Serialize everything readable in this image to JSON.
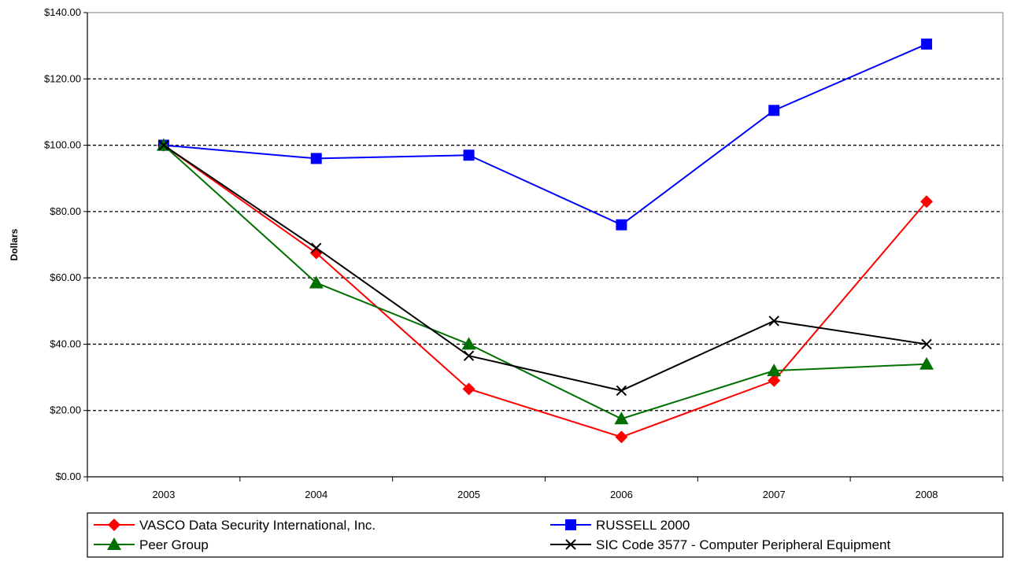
{
  "chart_data": {
    "type": "line",
    "title": "",
    "xlabel": "",
    "ylabel": "Dollars",
    "ylim": [
      0,
      140
    ],
    "yticks": [
      0,
      20,
      40,
      60,
      80,
      100,
      120,
      140
    ],
    "ytick_labels": [
      "$0.00",
      "$20.00",
      "$40.00",
      "$60.00",
      "$80.00",
      "$100.00",
      "$120.00",
      "$140.00"
    ],
    "categories": [
      "2003",
      "2004",
      "2005",
      "2006",
      "2007",
      "2008"
    ],
    "grid": "horizontal-dashed",
    "legend_position": "bottom",
    "series": [
      {
        "name": "VASCO Data Security International, Inc.",
        "color": "#ff0000",
        "marker": "diamond",
        "values": [
          100,
          67.5,
          26.5,
          12,
          29,
          83
        ]
      },
      {
        "name": "RUSSELL 2000",
        "color": "#0000ff",
        "marker": "square",
        "values": [
          100,
          96,
          97,
          76,
          110.5,
          130.5
        ]
      },
      {
        "name": "Peer Group",
        "color": "#007000",
        "marker": "triangle",
        "values": [
          100,
          58.5,
          40,
          17.5,
          32,
          34
        ]
      },
      {
        "name": "SIC Code 3577 - Computer Peripheral Equipment",
        "color": "#000000",
        "marker": "x",
        "values": [
          100,
          69,
          36.5,
          26,
          47,
          40
        ]
      }
    ]
  }
}
